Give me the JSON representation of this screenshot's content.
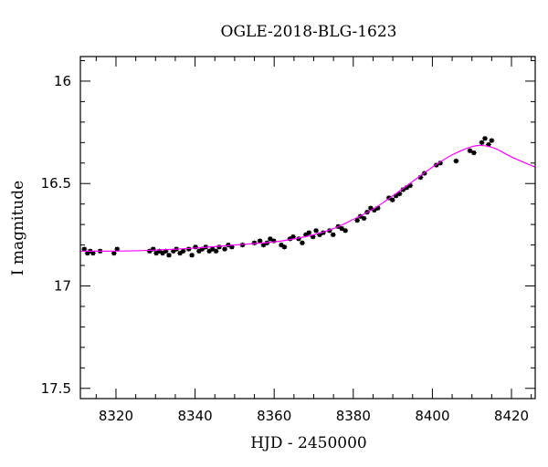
{
  "chart_data": {
    "type": "scatter",
    "title": "OGLE-2018-BLG-1623",
    "xlabel": "HJD - 2450000",
    "ylabel": "I magnitude",
    "xlim": [
      8311,
      8426
    ],
    "ylim": [
      17.55,
      15.88
    ],
    "y_inverted": true,
    "x_ticks": [
      8320,
      8340,
      8360,
      8380,
      8400,
      8420
    ],
    "y_ticks": [
      16,
      16.5,
      17,
      17.5
    ],
    "x_tick_labels": [
      "8320",
      "8340",
      "8360",
      "8380",
      "8400",
      "8420"
    ],
    "y_tick_labels": [
      "16",
      "16.5",
      "17",
      "17.5"
    ],
    "grid": false,
    "colors": {
      "data": "#000000",
      "model": "#ff00ff"
    },
    "model": {
      "name": "",
      "x": [
        8311,
        8320,
        8330,
        8340,
        8350,
        8360,
        8365,
        8370,
        8375,
        8380,
        8385,
        8390,
        8395,
        8400,
        8405,
        8410,
        8413,
        8416,
        8420,
        8426
      ],
      "y": [
        16.83,
        16.83,
        16.825,
        16.815,
        16.8,
        16.785,
        16.77,
        16.75,
        16.72,
        16.675,
        16.625,
        16.56,
        16.49,
        16.42,
        16.36,
        16.32,
        16.315,
        16.33,
        16.37,
        16.42
      ]
    },
    "series": [
      {
        "name": "",
        "error": 0.012,
        "x": [
          8312.0,
          8312.8,
          8313.5,
          8314.2,
          8316.0,
          8319.5,
          8320.3,
          8328.5,
          8329.4,
          8330.2,
          8331.0,
          8331.8,
          8332.6,
          8333.4,
          8334.5,
          8335.3,
          8336.2,
          8337.0,
          8338.4,
          8339.2,
          8340.1,
          8341.0,
          8341.8,
          8342.7,
          8343.6,
          8344.4,
          8345.3,
          8346.1,
          8347.5,
          8348.4,
          8349.3,
          8352.0,
          8355.0,
          8356.4,
          8357.3,
          8358.2,
          8359.0,
          8359.9,
          8361.8,
          8362.6,
          8364.0,
          8364.8,
          8366.2,
          8367.1,
          8368.0,
          8368.8,
          8369.8,
          8370.6,
          8371.5,
          8372.4,
          8374.0,
          8374.9,
          8376.2,
          8377.1,
          8378.0,
          8381.0,
          8381.8,
          8382.7,
          8383.5,
          8384.4,
          8385.3,
          8386.2,
          8389.0,
          8389.9,
          8390.8,
          8391.7,
          8392.6,
          8393.5,
          8394.4,
          8397.0,
          8398.0,
          8401.0,
          8402.0,
          8406.0,
          8409.5,
          8410.5,
          8412.5,
          8413.3,
          8414.2,
          8415.0
        ],
        "y": [
          16.82,
          16.84,
          16.83,
          16.84,
          16.83,
          16.84,
          16.82,
          16.83,
          16.82,
          16.84,
          16.83,
          16.84,
          16.83,
          16.85,
          16.83,
          16.82,
          16.84,
          16.83,
          16.82,
          16.85,
          16.81,
          16.83,
          16.82,
          16.81,
          16.83,
          16.82,
          16.83,
          16.81,
          16.82,
          16.8,
          16.81,
          16.8,
          16.79,
          16.78,
          16.8,
          16.79,
          16.77,
          16.78,
          16.8,
          16.81,
          16.77,
          16.76,
          16.77,
          16.79,
          16.75,
          16.74,
          16.76,
          16.73,
          16.75,
          16.74,
          16.73,
          16.75,
          16.71,
          16.72,
          16.73,
          16.68,
          16.66,
          16.67,
          16.64,
          16.62,
          16.63,
          16.62,
          16.57,
          16.58,
          16.56,
          16.55,
          16.53,
          16.52,
          16.51,
          16.47,
          16.45,
          16.41,
          16.4,
          16.39,
          16.34,
          16.35,
          16.3,
          16.28,
          16.31,
          16.29
        ]
      }
    ]
  }
}
